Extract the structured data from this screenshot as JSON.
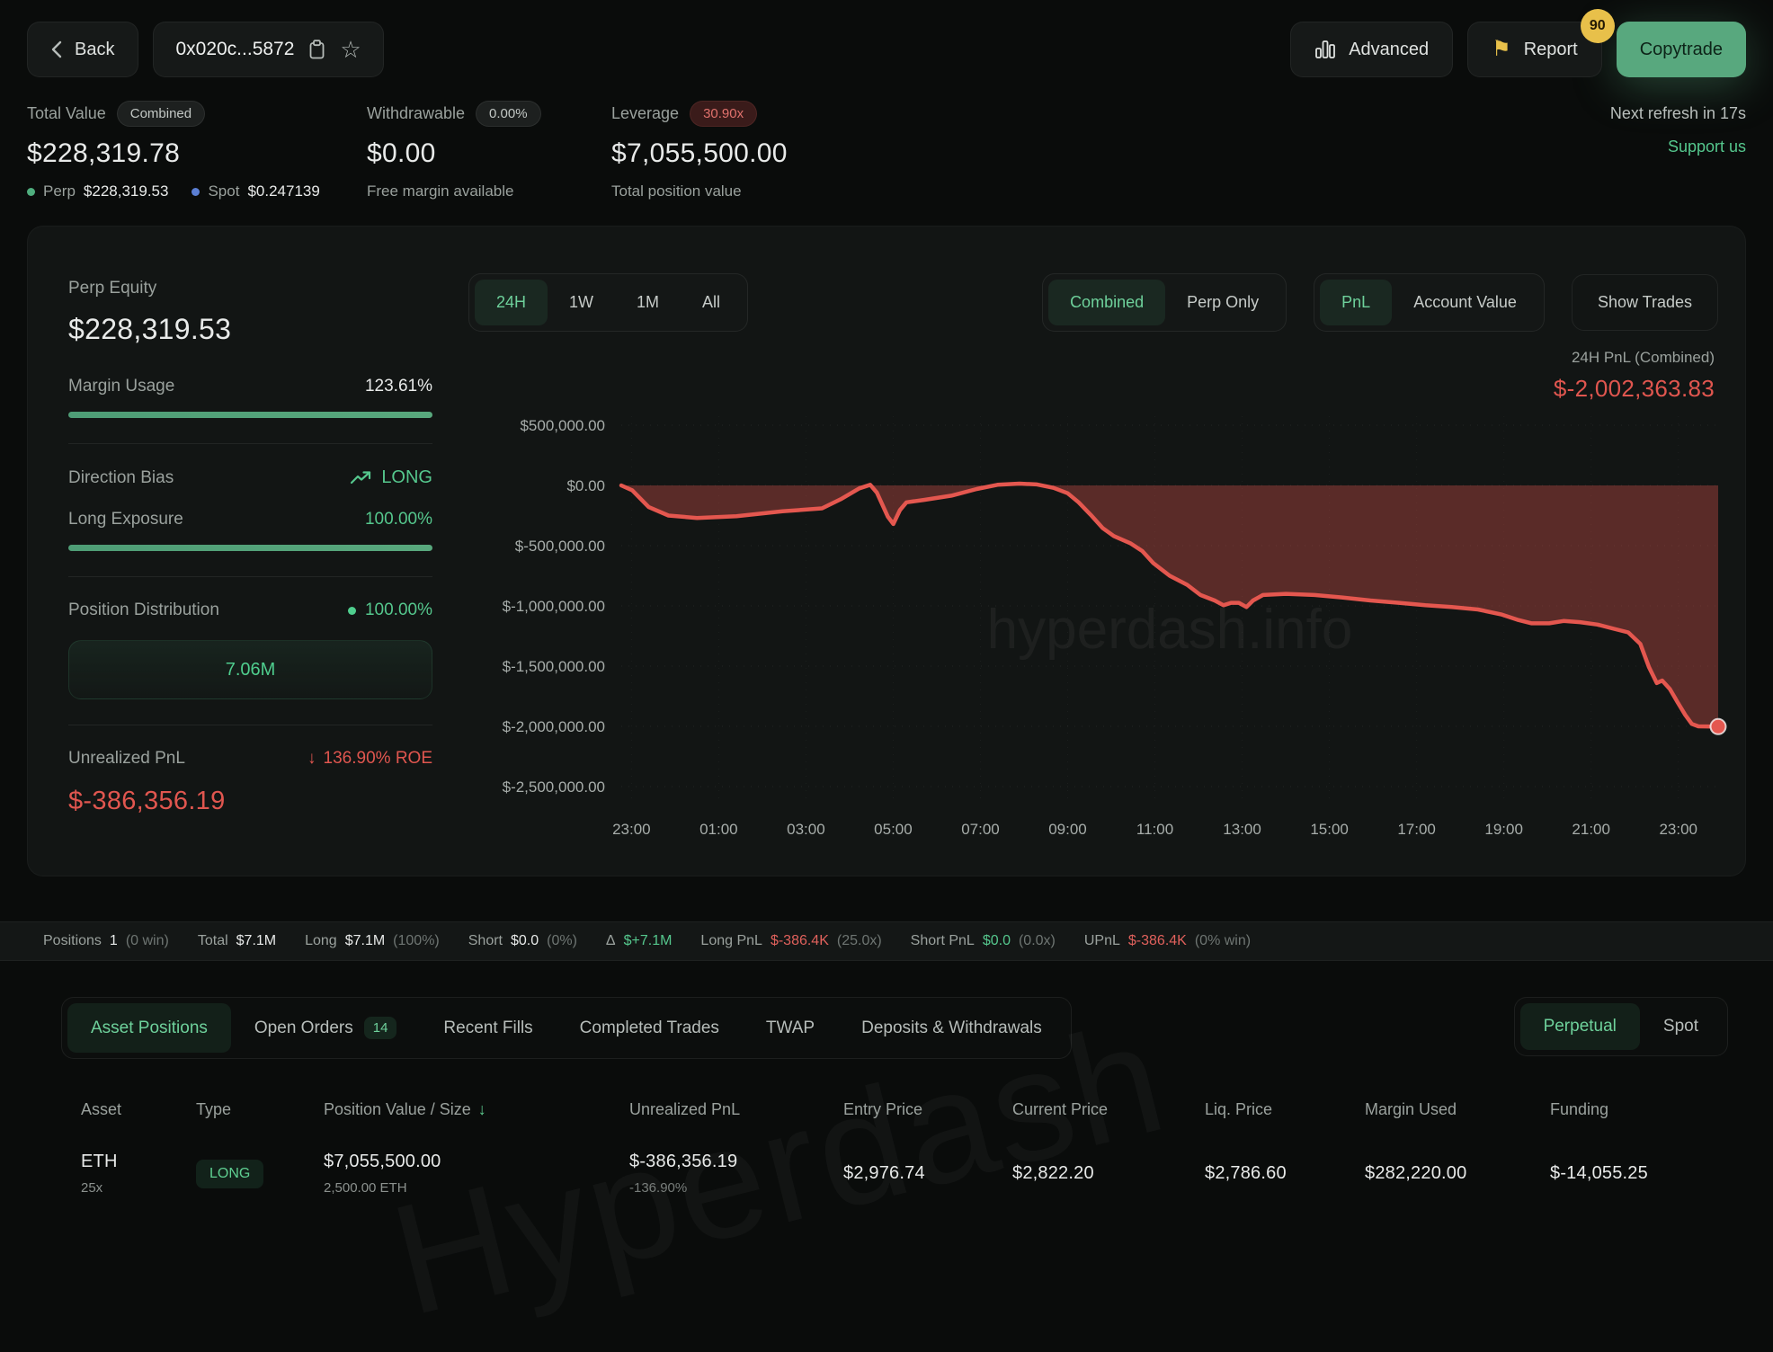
{
  "topbar": {
    "back_label": "Back",
    "address": "0x020c...5872",
    "advanced_label": "Advanced",
    "report_label": "Report",
    "report_badge": "90",
    "copytrade_label": "Copytrade"
  },
  "stats": {
    "total_value": {
      "label": "Total Value",
      "badge": "Combined",
      "value": "$228,319.78",
      "perp_label": "Perp",
      "perp_value": "$228,319.53",
      "spot_label": "Spot",
      "spot_value": "$0.247139"
    },
    "withdrawable": {
      "label": "Withdrawable",
      "badge": "0.00%",
      "value": "$0.00",
      "sub": "Free margin available"
    },
    "leverage": {
      "label": "Leverage",
      "badge": "30.90x",
      "value": "$7,055,500.00",
      "sub": "Total position value"
    },
    "refresh": "Next refresh in 17s",
    "support": "Support us"
  },
  "panel": {
    "perp_equity_label": "Perp Equity",
    "perp_equity": "$228,319.53",
    "margin_usage_label": "Margin Usage",
    "margin_usage": "123.61%",
    "direction_label": "Direction Bias",
    "direction": "LONG",
    "long_exposure_label": "Long Exposure",
    "long_exposure": "100.00%",
    "distribution_label": "Position Distribution",
    "distribution_pct": "100.00%",
    "distribution_value": "7.06M",
    "upnl_label": "Unrealized PnL",
    "roe": "136.90% ROE",
    "upnl": "$-386,356.19"
  },
  "chart_controls": {
    "ranges": [
      "24H",
      "1W",
      "1M",
      "All"
    ],
    "active_range": "24H",
    "scope": [
      "Combined",
      "Perp Only"
    ],
    "active_scope": "Combined",
    "mode": [
      "PnL",
      "Account Value"
    ],
    "active_mode": "PnL",
    "show_trades": "Show Trades",
    "pnl_label": "24H PnL (Combined)",
    "pnl_value": "$-2,002,363.83"
  },
  "chart_data": {
    "type": "area",
    "title": "24H PnL (Combined)",
    "current_value": "$-2,002,363.83",
    "watermark": "hyperdash.info",
    "ylim": [
      -2500000,
      500000
    ],
    "grid": true,
    "colors": {
      "line": "#e4574f",
      "fill": "rgba(226,85,77,0.35)"
    },
    "yticks": [
      {
        "value": 500000,
        "label": "$500,000.00"
      },
      {
        "value": 0,
        "label": "$0.00"
      },
      {
        "value": -500000,
        "label": "$-500,000.00"
      },
      {
        "value": -1000000,
        "label": "$-1,000,000.00"
      },
      {
        "value": -1500000,
        "label": "$-1,500,000.00"
      },
      {
        "value": -2000000,
        "label": "$-2,000,000.00"
      },
      {
        "value": -2500000,
        "label": "$-2,500,000.00"
      }
    ],
    "xticks": [
      "23:00",
      "01:00",
      "03:00",
      "05:00",
      "07:00",
      "09:00",
      "11:00",
      "13:00",
      "15:00",
      "17:00",
      "19:00",
      "21:00",
      "23:00"
    ],
    "series": [
      {
        "name": "24H PnL (Combined)",
        "points": [
          [
            0.0,
            0
          ],
          [
            0.01,
            -40000
          ],
          [
            0.025,
            -180000
          ],
          [
            0.043,
            -250000
          ],
          [
            0.069,
            -270000
          ],
          [
            0.105,
            -255000
          ],
          [
            0.147,
            -215000
          ],
          [
            0.183,
            -190000
          ],
          [
            0.2,
            -115000
          ],
          [
            0.217,
            -25000
          ],
          [
            0.227,
            5000
          ],
          [
            0.233,
            -60000
          ],
          [
            0.243,
            -260000
          ],
          [
            0.248,
            -320000
          ],
          [
            0.254,
            -205000
          ],
          [
            0.26,
            -140000
          ],
          [
            0.276,
            -120000
          ],
          [
            0.301,
            -85000
          ],
          [
            0.324,
            -30000
          ],
          [
            0.343,
            5000
          ],
          [
            0.363,
            15000
          ],
          [
            0.379,
            8000
          ],
          [
            0.394,
            -20000
          ],
          [
            0.407,
            -65000
          ],
          [
            0.417,
            -140000
          ],
          [
            0.428,
            -245000
          ],
          [
            0.439,
            -355000
          ],
          [
            0.449,
            -420000
          ],
          [
            0.464,
            -480000
          ],
          [
            0.475,
            -545000
          ],
          [
            0.485,
            -645000
          ],
          [
            0.5,
            -750000
          ],
          [
            0.516,
            -825000
          ],
          [
            0.528,
            -910000
          ],
          [
            0.541,
            -955000
          ],
          [
            0.549,
            -995000
          ],
          [
            0.556,
            -975000
          ],
          [
            0.563,
            -975000
          ],
          [
            0.57,
            -1010000
          ],
          [
            0.576,
            -955000
          ],
          [
            0.585,
            -910000
          ],
          [
            0.606,
            -900000
          ],
          [
            0.632,
            -910000
          ],
          [
            0.657,
            -930000
          ],
          [
            0.683,
            -955000
          ],
          [
            0.709,
            -975000
          ],
          [
            0.733,
            -995000
          ],
          [
            0.757,
            -1010000
          ],
          [
            0.781,
            -1030000
          ],
          [
            0.802,
            -1070000
          ],
          [
            0.817,
            -1115000
          ],
          [
            0.83,
            -1145000
          ],
          [
            0.846,
            -1145000
          ],
          [
            0.859,
            -1125000
          ],
          [
            0.874,
            -1135000
          ],
          [
            0.89,
            -1155000
          ],
          [
            0.905,
            -1190000
          ],
          [
            0.918,
            -1220000
          ],
          [
            0.929,
            -1315000
          ],
          [
            0.937,
            -1510000
          ],
          [
            0.944,
            -1640000
          ],
          [
            0.949,
            -1620000
          ],
          [
            0.956,
            -1690000
          ],
          [
            0.963,
            -1800000
          ],
          [
            0.97,
            -1905000
          ],
          [
            0.976,
            -1980000
          ],
          [
            0.982,
            -2000000
          ],
          [
            1.0,
            -2002363.83
          ]
        ]
      }
    ]
  },
  "positions_bar": {
    "items": [
      {
        "label": "Positions",
        "value": "1",
        "extra": "(0 win)"
      },
      {
        "label": "Total",
        "value": "$7.1M"
      },
      {
        "label": "Long",
        "value": "$7.1M",
        "extra": "(100%)"
      },
      {
        "label": "Short",
        "value": "$0.0",
        "extra": "(0%)"
      },
      {
        "label": "Δ",
        "value": "$+7.1M"
      },
      {
        "label": "Long PnL",
        "value": "$-386.4K",
        "extra": "(25.0x)"
      },
      {
        "label": "Short PnL",
        "value": "$0.0",
        "extra": "(0.0x)"
      },
      {
        "label": "UPnL",
        "value": "$-386.4K",
        "extra": "(0% win)"
      }
    ]
  },
  "tabs": {
    "items": [
      {
        "label": "Asset Positions",
        "active": true
      },
      {
        "label": "Open Orders",
        "badge": "14"
      },
      {
        "label": "Recent Fills"
      },
      {
        "label": "Completed Trades"
      },
      {
        "label": "TWAP"
      },
      {
        "label": "Deposits & Withdrawals"
      }
    ],
    "market": [
      "Perpetual",
      "Spot"
    ],
    "active_market": "Perpetual"
  },
  "table": {
    "columns": [
      "Asset",
      "Type",
      "Position Value / Size",
      "Unrealized PnL",
      "Entry Price",
      "Current Price",
      "Liq. Price",
      "Margin Used",
      "Funding"
    ],
    "rows": [
      {
        "asset": "ETH",
        "leverage": "25x",
        "type": "LONG",
        "value": "$7,055,500.00",
        "size": "2,500.00 ETH",
        "upnl": "$-386,356.19",
        "upnl_pct": "-136.90%",
        "entry": "$2,976.74",
        "current": "$2,822.20",
        "liq": "$2,786.60",
        "margin": "$282,220.00",
        "funding": "$-14,055.25"
      }
    ]
  },
  "watermarks": {
    "page": "Hyperdash"
  },
  "colors": {
    "accent_green": "#55c78d",
    "negative_red": "#e0564f",
    "badge_yellow": "#e8c04a"
  }
}
